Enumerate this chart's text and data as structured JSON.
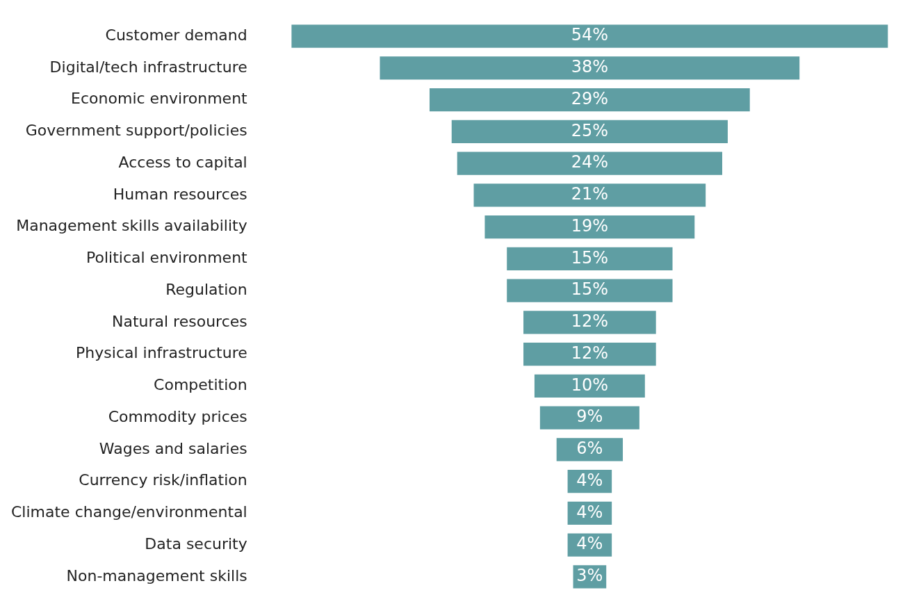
{
  "chart_data": {
    "type": "other",
    "categories": [
      "Customer demand",
      "Digital/tech infrastructure",
      "Economic environment",
      "Government support/policies",
      "Access to capital",
      "Human resources",
      "Management skills availability",
      "Political environment",
      "Regulation",
      "Natural resources",
      "Physical infrastructure",
      "Competition",
      "Commodity prices",
      "Wages and salaries",
      "Currency risk/inflation",
      "Climate change/environmental",
      "Data security",
      "Non-management skills"
    ],
    "values": [
      54,
      38,
      29,
      25,
      24,
      21,
      19,
      15,
      15,
      12,
      12,
      10,
      9,
      6,
      4,
      4,
      4,
      3
    ],
    "value_labels": [
      "54%",
      "38%",
      "29%",
      "25%",
      "24%",
      "21%",
      "19%",
      "15%",
      "15%",
      "12%",
      "12%",
      "10%",
      "9%",
      "6%",
      "4%",
      "4%",
      "4%",
      "3%"
    ],
    "color": "#5f9ea3"
  }
}
